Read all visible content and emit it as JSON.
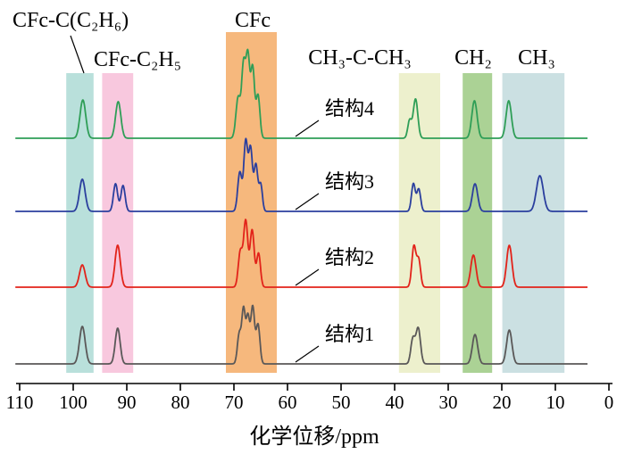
{
  "chart_data": {
    "type": "line",
    "title": "",
    "xlabel": "化学位移/ppm",
    "x_range": [
      110,
      0
    ],
    "x_reversed": true,
    "x_ticks": [
      110,
      100,
      90,
      80,
      70,
      60,
      50,
      40,
      30,
      20,
      10,
      0
    ],
    "grid": false,
    "legend_position": "inline-right-of-CFc-band",
    "bands": [
      {
        "label": "CFc-C(C₂H₆)",
        "ppm_range": [
          101.3,
          96.2
        ],
        "color": "#b9e0db",
        "full_height": false,
        "has_leader_line": true
      },
      {
        "label": "CFc-C₂H₅",
        "ppm_range": [
          94.6,
          88.8
        ],
        "color": "#f8c8de",
        "full_height": false,
        "has_leader_line": false
      },
      {
        "label": "CFc",
        "ppm_range": [
          71.5,
          62.0
        ],
        "color": "#f6b87d",
        "full_height": true,
        "has_leader_line": false
      },
      {
        "label": "CH₃-C-CH₃",
        "ppm_range": [
          39.2,
          31.5
        ],
        "color": "#edf0cd",
        "full_height": false,
        "has_leader_line": false
      },
      {
        "label": "CH₂",
        "ppm_range": [
          27.3,
          21.8
        ],
        "color": "#abd295",
        "full_height": false,
        "has_leader_line": false
      },
      {
        "label": "CH₃",
        "ppm_range": [
          19.9,
          8.3
        ],
        "color": "#cbe0e2",
        "full_height": false,
        "has_leader_line": false
      }
    ],
    "series": [
      {
        "name": "结构1",
        "color": "#5a5858",
        "peaks_ppm_height_width": [
          [
            98.3,
            42,
            0.75
          ],
          [
            91.7,
            40,
            0.65
          ],
          [
            69.0,
            34,
            0.5
          ],
          [
            68.2,
            60,
            0.45
          ],
          [
            67.4,
            52,
            0.45
          ],
          [
            66.5,
            64,
            0.5
          ],
          [
            65.5,
            44,
            0.5
          ],
          [
            36.6,
            28,
            0.55
          ],
          [
            35.6,
            40,
            0.6
          ],
          [
            25.0,
            33,
            0.7
          ],
          [
            18.6,
            38,
            0.7
          ]
        ]
      },
      {
        "name": "结构2",
        "color": "#e2231a",
        "peaks_ppm_height_width": [
          [
            98.3,
            25,
            0.75
          ],
          [
            91.7,
            47,
            0.7
          ],
          [
            68.8,
            40,
            0.55
          ],
          [
            67.8,
            74,
            0.55
          ],
          [
            66.6,
            64,
            0.55
          ],
          [
            65.4,
            38,
            0.5
          ],
          [
            36.4,
            46,
            0.55
          ],
          [
            35.5,
            30,
            0.5
          ],
          [
            25.3,
            36,
            0.7
          ],
          [
            18.6,
            47,
            0.7
          ]
        ]
      },
      {
        "name": "结构3",
        "color": "#2b3f9e",
        "peaks_ppm_height_width": [
          [
            98.3,
            36,
            0.75
          ],
          [
            92.1,
            31,
            0.55
          ],
          [
            90.7,
            29,
            0.55
          ],
          [
            68.9,
            44,
            0.55
          ],
          [
            67.8,
            78,
            0.5
          ],
          [
            66.9,
            70,
            0.5
          ],
          [
            65.9,
            52,
            0.5
          ],
          [
            65.0,
            30,
            0.45
          ],
          [
            36.5,
            31,
            0.5
          ],
          [
            35.5,
            25,
            0.5
          ],
          [
            25.0,
            31,
            0.7
          ],
          [
            12.9,
            40,
            0.9
          ]
        ]
      },
      {
        "name": "结构4",
        "color": "#2f9e57",
        "peaks_ppm_height_width": [
          [
            98.2,
            43,
            0.75
          ],
          [
            91.6,
            41,
            0.7
          ],
          [
            69.2,
            46,
            0.6
          ],
          [
            68.2,
            80,
            0.5
          ],
          [
            67.4,
            90,
            0.5
          ],
          [
            66.5,
            78,
            0.5
          ],
          [
            65.5,
            48,
            0.5
          ],
          [
            37.2,
            20,
            0.5
          ],
          [
            36.1,
            44,
            0.6
          ],
          [
            25.1,
            42,
            0.7
          ],
          [
            18.7,
            42,
            0.7
          ]
        ]
      }
    ]
  }
}
